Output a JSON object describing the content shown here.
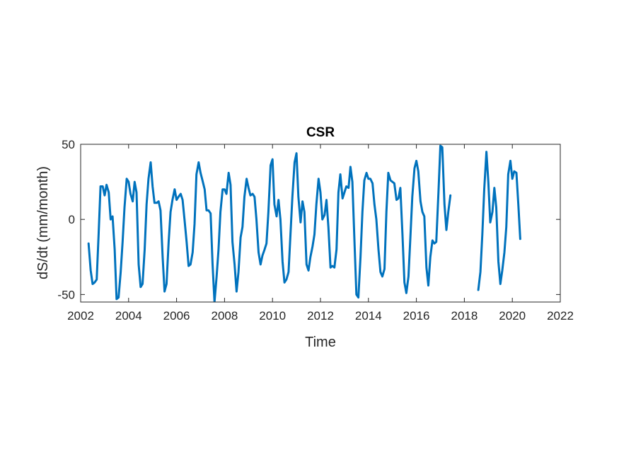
{
  "chart_data": {
    "type": "line",
    "title": "CSR",
    "xlabel": "Time",
    "ylabel": "dS/dt (mm/month)",
    "xlim": [
      2002,
      2022
    ],
    "ylim": [
      -55,
      50
    ],
    "xticks": [
      2002,
      2004,
      2006,
      2008,
      2010,
      2012,
      2014,
      2016,
      2018,
      2020,
      2022
    ],
    "yticks": [
      -50,
      0,
      50
    ],
    "grid": false,
    "line_color": "#0072BD",
    "series": [
      {
        "segments": [
          [
            [
              2002.33,
              -16
            ],
            [
              2002.42,
              -34
            ],
            [
              2002.5,
              -43
            ],
            [
              2002.58,
              -42
            ],
            [
              2002.67,
              -40
            ],
            [
              2002.75,
              -10
            ],
            [
              2002.83,
              22
            ],
            [
              2002.92,
              22
            ],
            [
              2003.0,
              16
            ],
            [
              2003.08,
              23
            ],
            [
              2003.17,
              18
            ],
            [
              2003.25,
              0
            ],
            [
              2003.33,
              2
            ],
            [
              2003.42,
              -20
            ],
            [
              2003.5,
              -53
            ],
            [
              2003.58,
              -52
            ],
            [
              2003.67,
              -35
            ],
            [
              2003.75,
              -15
            ],
            [
              2003.83,
              8
            ],
            [
              2003.92,
              27
            ],
            [
              2004.0,
              25
            ],
            [
              2004.08,
              17
            ],
            [
              2004.17,
              12
            ],
            [
              2004.25,
              25
            ],
            [
              2004.33,
              18
            ],
            [
              2004.42,
              -30
            ],
            [
              2004.5,
              -45
            ],
            [
              2004.58,
              -43
            ],
            [
              2004.67,
              -20
            ],
            [
              2004.75,
              10
            ],
            [
              2004.83,
              27
            ],
            [
              2004.92,
              38
            ],
            [
              2005.0,
              22
            ],
            [
              2005.08,
              11
            ],
            [
              2005.17,
              11
            ],
            [
              2005.25,
              12
            ],
            [
              2005.33,
              6
            ],
            [
              2005.42,
              -25
            ],
            [
              2005.5,
              -48
            ],
            [
              2005.58,
              -43
            ],
            [
              2005.67,
              -15
            ],
            [
              2005.75,
              5
            ],
            [
              2005.83,
              13
            ],
            [
              2005.92,
              20
            ],
            [
              2006.0,
              13
            ],
            [
              2006.08,
              15
            ],
            [
              2006.17,
              17
            ],
            [
              2006.25,
              13
            ],
            [
              2006.33,
              0
            ],
            [
              2006.42,
              -15
            ],
            [
              2006.5,
              -31
            ],
            [
              2006.58,
              -30
            ],
            [
              2006.67,
              -22
            ],
            [
              2006.75,
              -3
            ],
            [
              2006.83,
              30
            ],
            [
              2006.92,
              38
            ],
            [
              2007.0,
              31
            ],
            [
              2007.08,
              26
            ],
            [
              2007.17,
              20
            ],
            [
              2007.25,
              6
            ],
            [
              2007.33,
              6
            ],
            [
              2007.42,
              4
            ],
            [
              2007.5,
              -30
            ],
            [
              2007.58,
              -55
            ],
            [
              2007.67,
              -38
            ],
            [
              2007.75,
              -20
            ],
            [
              2007.83,
              5
            ],
            [
              2007.92,
              20
            ],
            [
              2008.0,
              20
            ],
            [
              2008.08,
              17
            ],
            [
              2008.17,
              31
            ],
            [
              2008.25,
              23
            ],
            [
              2008.33,
              -15
            ],
            [
              2008.42,
              -30
            ],
            [
              2008.5,
              -48
            ],
            [
              2008.58,
              -35
            ],
            [
              2008.67,
              -12
            ],
            [
              2008.75,
              -5
            ],
            [
              2008.83,
              15
            ],
            [
              2008.92,
              27
            ],
            [
              2009.0,
              21
            ],
            [
              2009.08,
              16
            ],
            [
              2009.17,
              17
            ],
            [
              2009.25,
              15
            ],
            [
              2009.33,
              0
            ],
            [
              2009.42,
              -22
            ],
            [
              2009.5,
              -30
            ],
            [
              2009.58,
              -24
            ],
            [
              2009.67,
              -20
            ],
            [
              2009.75,
              -16
            ],
            [
              2009.83,
              5
            ],
            [
              2009.92,
              36
            ],
            [
              2010.0,
              40
            ],
            [
              2010.08,
              10
            ],
            [
              2010.17,
              2
            ],
            [
              2010.25,
              13
            ],
            [
              2010.33,
              0
            ],
            [
              2010.42,
              -28
            ],
            [
              2010.5,
              -42
            ],
            [
              2010.58,
              -40
            ],
            [
              2010.67,
              -35
            ],
            [
              2010.75,
              -10
            ],
            [
              2010.83,
              15
            ],
            [
              2010.92,
              38
            ],
            [
              2011.0,
              44
            ],
            [
              2011.08,
              15
            ],
            [
              2011.17,
              -2
            ],
            [
              2011.25,
              12
            ],
            [
              2011.33,
              5
            ],
            [
              2011.42,
              -30
            ],
            [
              2011.5,
              -34
            ],
            [
              2011.58,
              -25
            ],
            [
              2011.67,
              -18
            ],
            [
              2011.75,
              -10
            ],
            [
              2011.83,
              10
            ],
            [
              2011.92,
              27
            ],
            [
              2012.0,
              18
            ],
            [
              2012.08,
              0
            ],
            [
              2012.17,
              3
            ],
            [
              2012.25,
              13
            ],
            [
              2012.33,
              -5
            ],
            [
              2012.42,
              -32
            ],
            [
              2012.5,
              -31
            ],
            [
              2012.58,
              -32
            ],
            [
              2012.67,
              -20
            ],
            [
              2012.75,
              18
            ],
            [
              2012.83,
              30
            ],
            [
              2012.92,
              14
            ],
            [
              2013.0,
              18
            ],
            [
              2013.08,
              22
            ],
            [
              2013.17,
              21
            ],
            [
              2013.25,
              35
            ],
            [
              2013.33,
              25
            ],
            [
              2013.42,
              -15
            ],
            [
              2013.5,
              -50
            ],
            [
              2013.58,
              -52
            ],
            [
              2013.67,
              -25
            ],
            [
              2013.75,
              5
            ],
            [
              2013.83,
              26
            ],
            [
              2013.92,
              31
            ],
            [
              2014.0,
              27
            ],
            [
              2014.08,
              27
            ],
            [
              2014.17,
              24
            ],
            [
              2014.25,
              10
            ],
            [
              2014.33,
              0
            ],
            [
              2014.42,
              -20
            ],
            [
              2014.5,
              -35
            ],
            [
              2014.58,
              -38
            ],
            [
              2014.67,
              -33
            ],
            [
              2014.75,
              5
            ],
            [
              2014.83,
              31
            ],
            [
              2014.92,
              26
            ],
            [
              2015.0,
              25
            ],
            [
              2015.08,
              24
            ],
            [
              2015.17,
              13
            ],
            [
              2015.25,
              14
            ],
            [
              2015.33,
              21
            ],
            [
              2015.42,
              -10
            ],
            [
              2015.5,
              -42
            ],
            [
              2015.58,
              -49
            ],
            [
              2015.67,
              -38
            ],
            [
              2015.75,
              -12
            ],
            [
              2015.83,
              15
            ],
            [
              2015.92,
              34
            ],
            [
              2016.0,
              39
            ],
            [
              2016.08,
              32
            ],
            [
              2016.17,
              12
            ],
            [
              2016.25,
              5
            ],
            [
              2016.33,
              2
            ],
            [
              2016.42,
              -32
            ],
            [
              2016.5,
              -44
            ],
            [
              2016.58,
              -25
            ],
            [
              2016.67,
              -14
            ],
            [
              2016.75,
              -16
            ],
            [
              2016.83,
              -15
            ],
            [
              2016.92,
              18
            ],
            [
              2017.0,
              49
            ],
            [
              2017.08,
              48
            ],
            [
              2017.17,
              10
            ],
            [
              2017.25,
              -7
            ],
            [
              2017.33,
              5
            ],
            [
              2017.42,
              16
            ]
          ],
          [
            [
              2018.58,
              -47
            ],
            [
              2018.67,
              -35
            ],
            [
              2018.75,
              -10
            ],
            [
              2018.83,
              20
            ],
            [
              2018.92,
              45
            ],
            [
              2019.0,
              25
            ],
            [
              2019.08,
              -2
            ],
            [
              2019.17,
              5
            ],
            [
              2019.25,
              21
            ],
            [
              2019.33,
              8
            ],
            [
              2019.42,
              -28
            ],
            [
              2019.5,
              -43
            ],
            [
              2019.58,
              -34
            ],
            [
              2019.67,
              -22
            ],
            [
              2019.75,
              -5
            ],
            [
              2019.83,
              30
            ],
            [
              2019.92,
              39
            ],
            [
              2020.0,
              27
            ],
            [
              2020.08,
              32
            ],
            [
              2020.17,
              31
            ],
            [
              2020.25,
              10
            ],
            [
              2020.33,
              -13
            ]
          ]
        ]
      }
    ]
  }
}
